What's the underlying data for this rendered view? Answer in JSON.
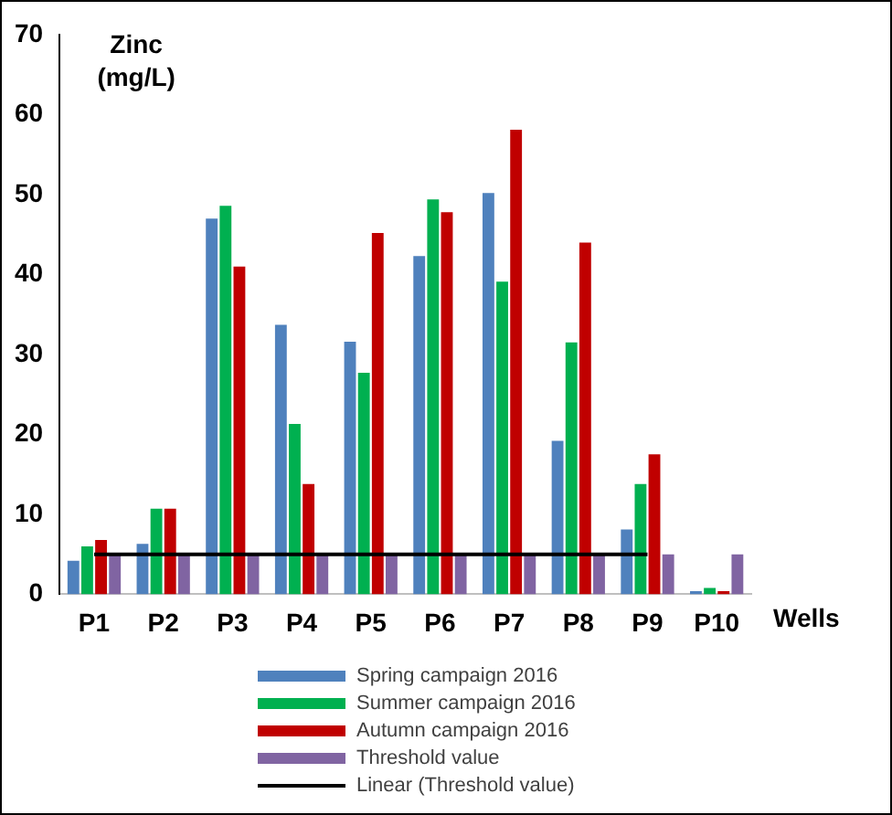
{
  "chart_data": {
    "type": "bar",
    "ylabel": "Zinc\n(mg/L)",
    "xlabel": "Wells",
    "categories": [
      "P1",
      "P2",
      "P3",
      "P4",
      "P5",
      "P6",
      "P7",
      "P8",
      "P9",
      "P10"
    ],
    "series": [
      {
        "name": "Spring campaign 2016",
        "color": "#4f81bd",
        "values": [
          4.2,
          6.3,
          47,
          33.7,
          31.6,
          42.3,
          50.2,
          19.2,
          8.1,
          0.4
        ]
      },
      {
        "name": "Summer campaign 2016",
        "color": "#00b050",
        "values": [
          6,
          10.7,
          48.6,
          21.3,
          27.7,
          49.4,
          39.1,
          31.5,
          13.8,
          0.8
        ]
      },
      {
        "name": "Autumn campaign 2016",
        "color": "#c00000",
        "values": [
          6.8,
          10.7,
          41,
          13.8,
          45.2,
          47.8,
          58.1,
          44,
          17.5,
          0.4
        ]
      },
      {
        "name": "Threshold value",
        "color": "#8064a2",
        "values": [
          5,
          5,
          5,
          5,
          5,
          5,
          5,
          5,
          5,
          5
        ]
      },
      {
        "name": "Linear (Threshold value)",
        "type": "line",
        "color": "#000000",
        "values": [
          5,
          5,
          5,
          5,
          5,
          5,
          5,
          5,
          5,
          null
        ]
      }
    ],
    "ylim": [
      0,
      70
    ],
    "yticks": [
      0,
      10,
      20,
      30,
      40,
      50,
      60,
      70
    ],
    "grid": false,
    "legend": "bottom",
    "marker": "none",
    "line_style": "solid"
  }
}
